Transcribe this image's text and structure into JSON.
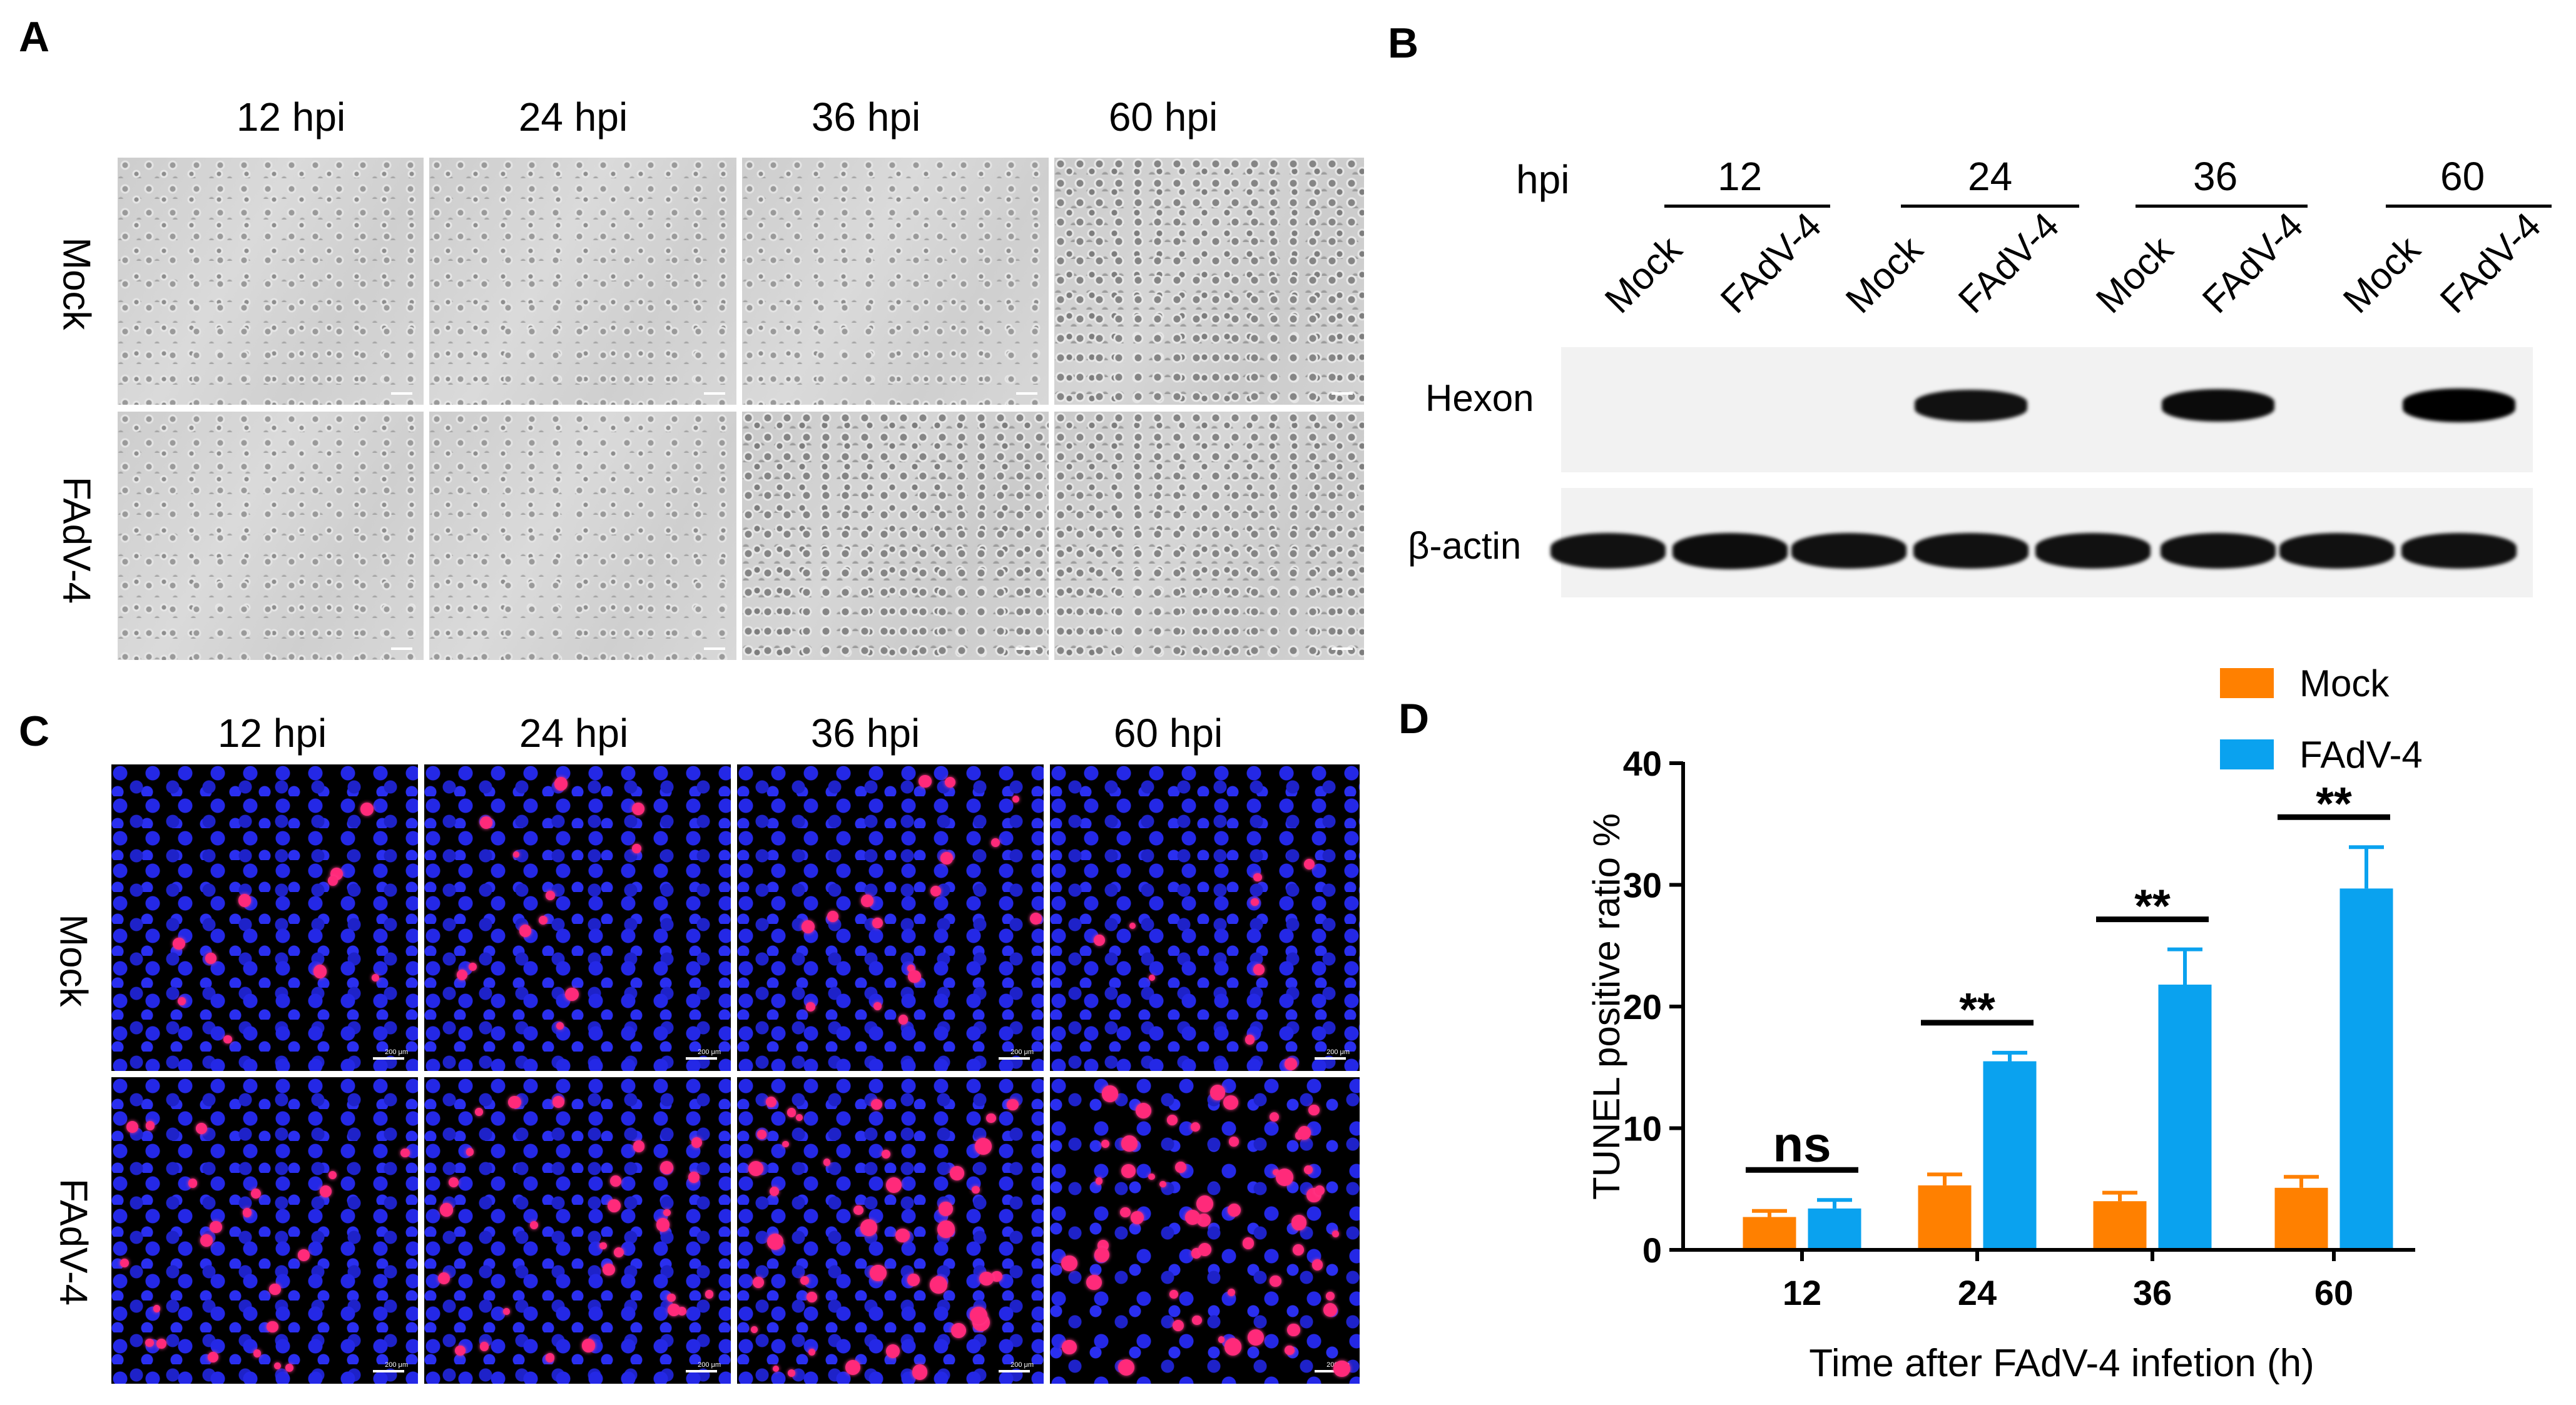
{
  "panel_labels": {
    "a": "A",
    "b": "B",
    "c": "C",
    "d": "D"
  },
  "panel_a": {
    "columns": [
      "12 hpi",
      "24 hpi",
      "36 hpi",
      "60 hpi"
    ],
    "rows": [
      "Mock",
      "FAdV-4"
    ]
  },
  "panel_b": {
    "hpi_label": "hpi",
    "timepoints": [
      "12",
      "24",
      "36",
      "60"
    ],
    "lanes": [
      "Mock",
      "FAdV-4",
      "Mock",
      "FAdV-4",
      "Mock",
      "FAdV-4",
      "Mock",
      "FAdV-4"
    ],
    "proteins": [
      "Hexon",
      "β-actin"
    ],
    "hexon_intensity": [
      0,
      0,
      0,
      0.85,
      0,
      0.9,
      0,
      1.0
    ],
    "actin_intensity": [
      0.95,
      1.0,
      0.95,
      0.95,
      0.95,
      0.95,
      0.95,
      0.95
    ]
  },
  "panel_c": {
    "columns": [
      "12 hpi",
      "24 hpi",
      "36 hpi",
      "60 hpi"
    ],
    "rows": [
      "Mock",
      "FAdV-4"
    ],
    "scale_text": "200 μm"
  },
  "chart_data": {
    "type": "bar",
    "categories": [
      "12",
      "24",
      "36",
      "60"
    ],
    "series": [
      {
        "name": "Mock",
        "values": [
          2.7,
          5.3,
          4.0,
          5.1
        ],
        "errors": [
          0.5,
          0.9,
          0.7,
          0.9
        ],
        "color": "#ff8000"
      },
      {
        "name": "FAdV-4",
        "values": [
          3.4,
          15.5,
          21.8,
          29.7
        ],
        "errors": [
          0.7,
          0.7,
          2.9,
          3.4
        ],
        "color": "#0aa2ef"
      }
    ],
    "significance": [
      "ns",
      "**",
      "**",
      "**"
    ],
    "xlabel": "Time after FAdV-4 infetion (h)",
    "ylabel": "TUNEL positive ratio %",
    "ylim": [
      0,
      40
    ],
    "yticks": [
      0,
      10,
      20,
      30,
      40
    ],
    "legend": "top-right"
  }
}
